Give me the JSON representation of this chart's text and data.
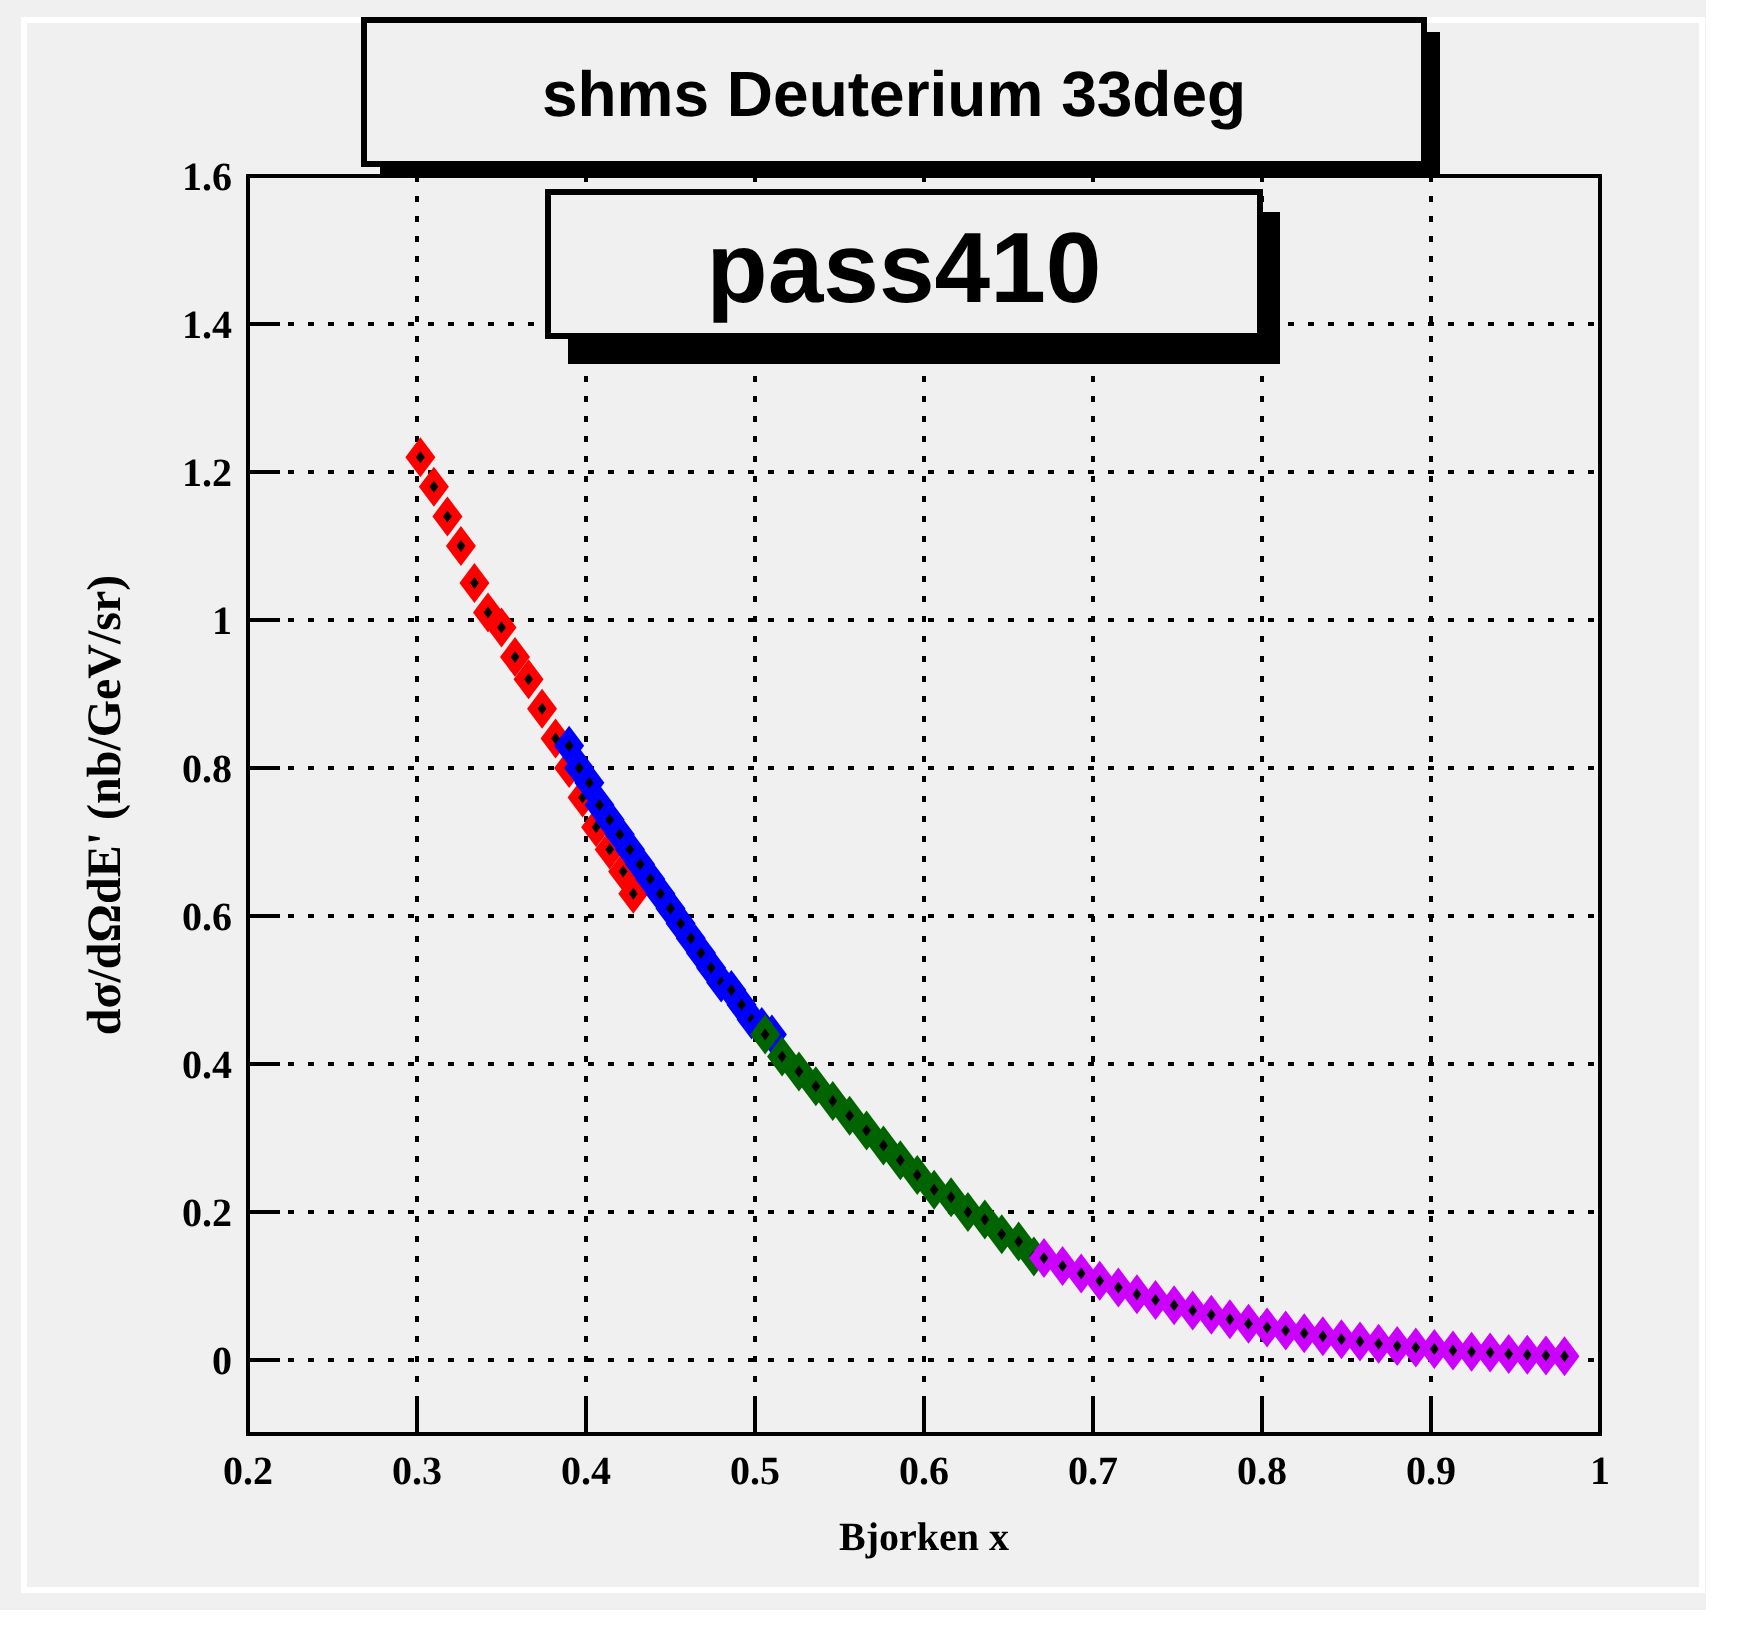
{
  "chart_data": {
    "type": "scatter",
    "title": "shms Deuterium 33deg",
    "subtitle": "pass410",
    "xlabel": "Bjorken x",
    "ylabel": "dσ/dΩdE' (nb/GeV/sr)",
    "xlim": [
      0.2,
      1
    ],
    "xticks": [
      0.2,
      0.3,
      0.4,
      0.5,
      0.6,
      0.7,
      0.8,
      0.9,
      1
    ],
    "ylim": [
      -0.1,
      1.6
    ],
    "yticks": [
      0,
      0.2,
      0.4,
      0.6,
      0.8,
      1,
      1.2,
      1.4,
      1.6
    ],
    "grid": true,
    "marker": "diamond",
    "series": [
      {
        "color": "#ff0000",
        "x": [
          0.302,
          0.31,
          0.318,
          0.326,
          0.334,
          0.342,
          0.35,
          0.358,
          0.366,
          0.374,
          0.382,
          0.39,
          0.398,
          0.406,
          0.414,
          0.422,
          0.428
        ],
        "values": [
          1.22,
          1.18,
          1.14,
          1.1,
          1.05,
          1.01,
          0.99,
          0.95,
          0.92,
          0.88,
          0.84,
          0.8,
          0.76,
          0.72,
          0.69,
          0.66,
          0.63
        ]
      },
      {
        "color": "#0000ff",
        "x": [
          0.39,
          0.396,
          0.402,
          0.408,
          0.414,
          0.42,
          0.426,
          0.432,
          0.438,
          0.444,
          0.45,
          0.456,
          0.462,
          0.468,
          0.474,
          0.48,
          0.486,
          0.492,
          0.498,
          0.504,
          0.51
        ],
        "values": [
          0.83,
          0.8,
          0.78,
          0.75,
          0.73,
          0.71,
          0.69,
          0.67,
          0.65,
          0.63,
          0.61,
          0.59,
          0.57,
          0.55,
          0.53,
          0.51,
          0.5,
          0.48,
          0.46,
          0.45,
          0.44
        ]
      },
      {
        "color": "#006400",
        "x": [
          0.506,
          0.516,
          0.526,
          0.536,
          0.546,
          0.556,
          0.566,
          0.576,
          0.586,
          0.596,
          0.606,
          0.616,
          0.626,
          0.636,
          0.646,
          0.656,
          0.665
        ],
        "values": [
          0.44,
          0.41,
          0.39,
          0.37,
          0.35,
          0.33,
          0.31,
          0.29,
          0.27,
          0.25,
          0.23,
          0.22,
          0.2,
          0.19,
          0.17,
          0.16,
          0.14
        ]
      },
      {
        "color": "#cc00ff",
        "x": [
          0.671,
          0.682,
          0.693,
          0.704,
          0.715,
          0.726,
          0.737,
          0.748,
          0.759,
          0.77,
          0.781,
          0.792,
          0.803,
          0.814,
          0.825,
          0.836,
          0.847,
          0.858,
          0.869,
          0.88,
          0.891,
          0.902,
          0.913,
          0.924,
          0.935,
          0.946,
          0.957,
          0.968,
          0.979
        ],
        "values": [
          0.138,
          0.127,
          0.117,
          0.107,
          0.098,
          0.089,
          0.081,
          0.074,
          0.067,
          0.061,
          0.055,
          0.049,
          0.044,
          0.04,
          0.036,
          0.032,
          0.028,
          0.025,
          0.022,
          0.019,
          0.017,
          0.015,
          0.013,
          0.011,
          0.01,
          0.008,
          0.007,
          0.006,
          0.005
        ]
      }
    ]
  }
}
